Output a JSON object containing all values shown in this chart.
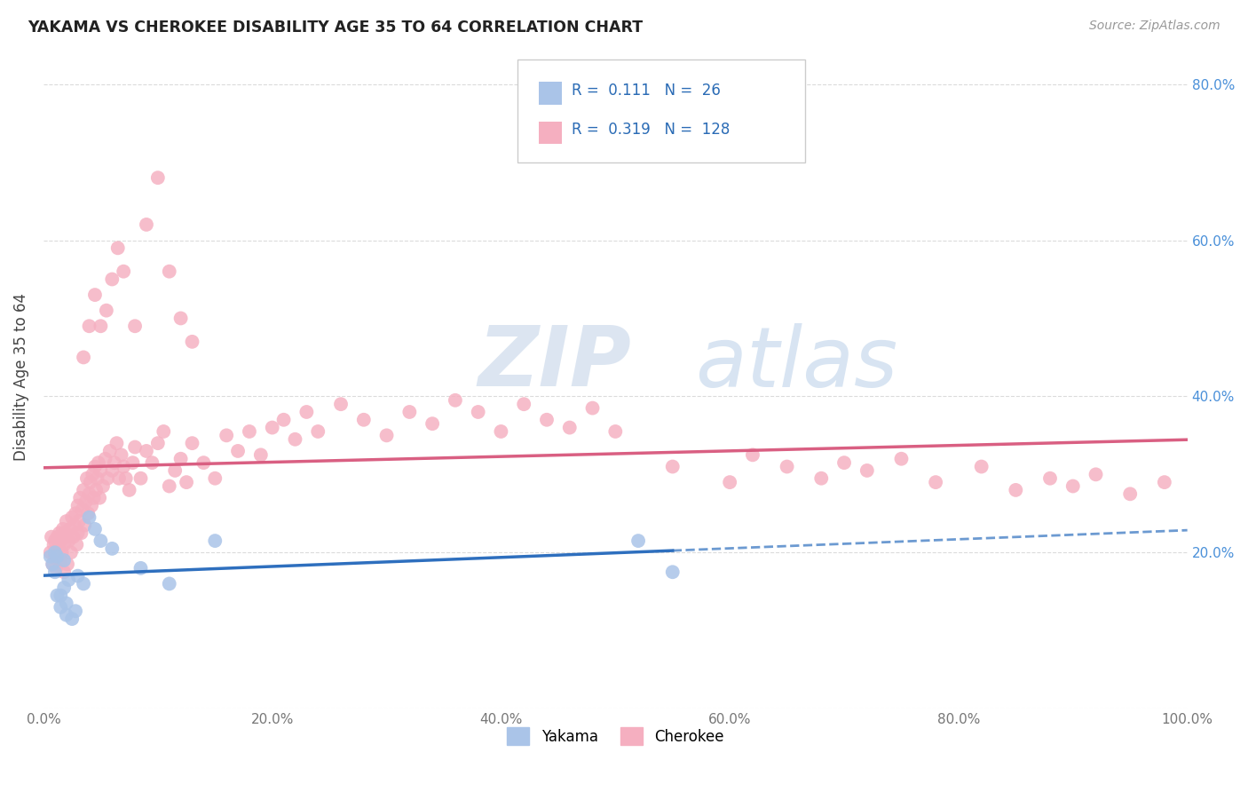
{
  "title": "YAKAMA VS CHEROKEE DISABILITY AGE 35 TO 64 CORRELATION CHART",
  "source": "Source: ZipAtlas.com",
  "ylabel": "Disability Age 35 to 64",
  "watermark_zip": "ZIP",
  "watermark_atlas": "atlas",
  "xlim": [
    0.0,
    1.0
  ],
  "ylim": [
    0.0,
    0.85
  ],
  "x_tick_labels": [
    "0.0%",
    "20.0%",
    "40.0%",
    "60.0%",
    "80.0%",
    "100.0%"
  ],
  "y_right_labels": [
    "20.0%",
    "40.0%",
    "60.0%",
    "80.0%"
  ],
  "legend_r_yakama": "0.111",
  "legend_n_yakama": "26",
  "legend_r_cherokee": "0.319",
  "legend_n_cherokee": "128",
  "yakama_color": "#aac4e8",
  "cherokee_color": "#f5afc0",
  "yakama_line_color": "#2e6fbe",
  "cherokee_line_color": "#d95f82",
  "grid_color": "#cccccc",
  "background_color": "#ffffff",
  "watermark_color_zip": "#c5d5e8",
  "watermark_color_atlas": "#b8cfe8",
  "yakama_x": [
    0.006,
    0.008,
    0.01,
    0.01,
    0.012,
    0.012,
    0.015,
    0.015,
    0.018,
    0.018,
    0.02,
    0.02,
    0.022,
    0.025,
    0.028,
    0.03,
    0.035,
    0.04,
    0.045,
    0.05,
    0.06,
    0.085,
    0.11,
    0.15,
    0.52,
    0.55
  ],
  "yakama_y": [
    0.195,
    0.185,
    0.2,
    0.175,
    0.195,
    0.145,
    0.145,
    0.13,
    0.19,
    0.155,
    0.135,
    0.12,
    0.165,
    0.115,
    0.125,
    0.17,
    0.16,
    0.245,
    0.23,
    0.215,
    0.205,
    0.18,
    0.16,
    0.215,
    0.215,
    0.175
  ],
  "cherokee_x": [
    0.006,
    0.007,
    0.008,
    0.009,
    0.01,
    0.01,
    0.011,
    0.012,
    0.013,
    0.014,
    0.015,
    0.015,
    0.016,
    0.017,
    0.018,
    0.018,
    0.019,
    0.02,
    0.02,
    0.021,
    0.022,
    0.023,
    0.024,
    0.025,
    0.026,
    0.027,
    0.028,
    0.029,
    0.03,
    0.03,
    0.031,
    0.032,
    0.033,
    0.034,
    0.035,
    0.036,
    0.037,
    0.038,
    0.039,
    0.04,
    0.041,
    0.042,
    0.043,
    0.044,
    0.045,
    0.046,
    0.047,
    0.048,
    0.049,
    0.05,
    0.052,
    0.054,
    0.056,
    0.058,
    0.06,
    0.062,
    0.064,
    0.066,
    0.068,
    0.07,
    0.072,
    0.075,
    0.078,
    0.08,
    0.085,
    0.09,
    0.095,
    0.1,
    0.105,
    0.11,
    0.115,
    0.12,
    0.125,
    0.13,
    0.14,
    0.15,
    0.16,
    0.17,
    0.18,
    0.19,
    0.2,
    0.21,
    0.22,
    0.23,
    0.24,
    0.26,
    0.28,
    0.3,
    0.32,
    0.34,
    0.36,
    0.38,
    0.4,
    0.42,
    0.44,
    0.46,
    0.48,
    0.5,
    0.55,
    0.6,
    0.62,
    0.65,
    0.68,
    0.7,
    0.72,
    0.75,
    0.78,
    0.82,
    0.85,
    0.88,
    0.9,
    0.92,
    0.95,
    0.98,
    0.035,
    0.04,
    0.045,
    0.05,
    0.055,
    0.06,
    0.065,
    0.07,
    0.08,
    0.09,
    0.1,
    0.11,
    0.12,
    0.13
  ],
  "cherokee_y": [
    0.2,
    0.22,
    0.185,
    0.21,
    0.195,
    0.215,
    0.18,
    0.22,
    0.205,
    0.225,
    0.19,
    0.215,
    0.2,
    0.23,
    0.21,
    0.175,
    0.225,
    0.22,
    0.24,
    0.185,
    0.215,
    0.23,
    0.2,
    0.245,
    0.22,
    0.235,
    0.25,
    0.21,
    0.26,
    0.225,
    0.24,
    0.27,
    0.225,
    0.255,
    0.28,
    0.235,
    0.265,
    0.295,
    0.25,
    0.275,
    0.29,
    0.26,
    0.3,
    0.27,
    0.31,
    0.28,
    0.295,
    0.315,
    0.27,
    0.305,
    0.285,
    0.32,
    0.295,
    0.33,
    0.305,
    0.315,
    0.34,
    0.295,
    0.325,
    0.31,
    0.295,
    0.28,
    0.315,
    0.335,
    0.295,
    0.33,
    0.315,
    0.34,
    0.355,
    0.285,
    0.305,
    0.32,
    0.29,
    0.34,
    0.315,
    0.295,
    0.35,
    0.33,
    0.355,
    0.325,
    0.36,
    0.37,
    0.345,
    0.38,
    0.355,
    0.39,
    0.37,
    0.35,
    0.38,
    0.365,
    0.395,
    0.38,
    0.355,
    0.39,
    0.37,
    0.36,
    0.385,
    0.355,
    0.31,
    0.29,
    0.325,
    0.31,
    0.295,
    0.315,
    0.305,
    0.32,
    0.29,
    0.31,
    0.28,
    0.295,
    0.285,
    0.3,
    0.275,
    0.29,
    0.45,
    0.49,
    0.53,
    0.49,
    0.51,
    0.55,
    0.59,
    0.56,
    0.49,
    0.62,
    0.68,
    0.56,
    0.5,
    0.47
  ]
}
